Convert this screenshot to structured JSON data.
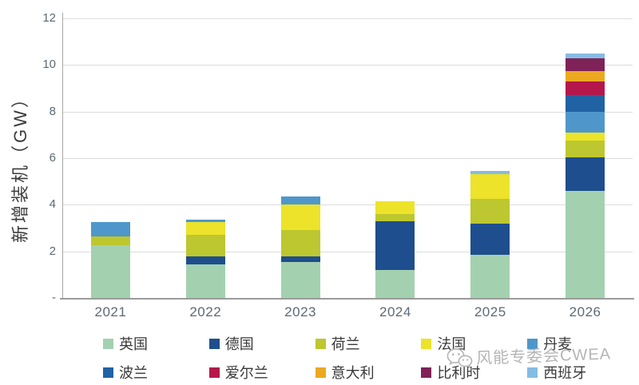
{
  "chart_data": {
    "type": "bar",
    "stacked": true,
    "title": "",
    "xlabel": "",
    "ylabel": "新增装机（GW）",
    "ylim": [
      0,
      12
    ],
    "grid": true,
    "legend_position": "bottom",
    "categories": [
      "2021",
      "2022",
      "2023",
      "2024",
      "2025",
      "2026"
    ],
    "yticks": [
      {
        "value": 12,
        "label": "12"
      },
      {
        "value": 10,
        "label": "10"
      },
      {
        "value": 8,
        "label": "8"
      },
      {
        "value": 6,
        "label": "6"
      },
      {
        "value": 4,
        "label": "4"
      },
      {
        "value": 2,
        "label": "2"
      },
      {
        "value": 0,
        "label": "-"
      }
    ],
    "series": [
      {
        "name": "英国",
        "color": "#a3d1af",
        "values": [
          2.25,
          1.45,
          1.55,
          1.2,
          1.85,
          4.6
        ]
      },
      {
        "name": "德国",
        "color": "#1e4e8d",
        "values": [
          0,
          0.35,
          0.25,
          2.1,
          1.35,
          1.45
        ]
      },
      {
        "name": "荷兰",
        "color": "#bdc72f",
        "values": [
          0.4,
          0.9,
          1.1,
          0.3,
          1.05,
          0.7
        ]
      },
      {
        "name": "法国",
        "color": "#ece32a",
        "values": [
          0,
          0.55,
          1.1,
          0.55,
          1.05,
          0.35
        ]
      },
      {
        "name": "丹麦",
        "color": "#4f97ca",
        "values": [
          0.6,
          0.1,
          0.35,
          0,
          0,
          0.9
        ]
      },
      {
        "name": "波兰",
        "color": "#2062a4",
        "values": [
          0,
          0,
          0,
          0,
          0,
          0.7
        ]
      },
      {
        "name": "爱尔兰",
        "color": "#b5174d",
        "values": [
          0,
          0,
          0,
          0,
          0,
          0.6
        ]
      },
      {
        "name": "意大利",
        "color": "#eca920",
        "values": [
          0,
          0,
          0,
          0,
          0,
          0.45
        ]
      },
      {
        "name": "比利时",
        "color": "#7e2257",
        "values": [
          0,
          0,
          0,
          0,
          0,
          0.55
        ]
      },
      {
        "name": "西班牙",
        "color": "#85bce4",
        "values": [
          0,
          0,
          0,
          0,
          0.15,
          0.2
        ]
      }
    ],
    "totals": [
      3.25,
      3.35,
      4.35,
      4.15,
      5.45,
      10.5
    ]
  },
  "watermark": {
    "text": "风能专委会CWEA"
  }
}
